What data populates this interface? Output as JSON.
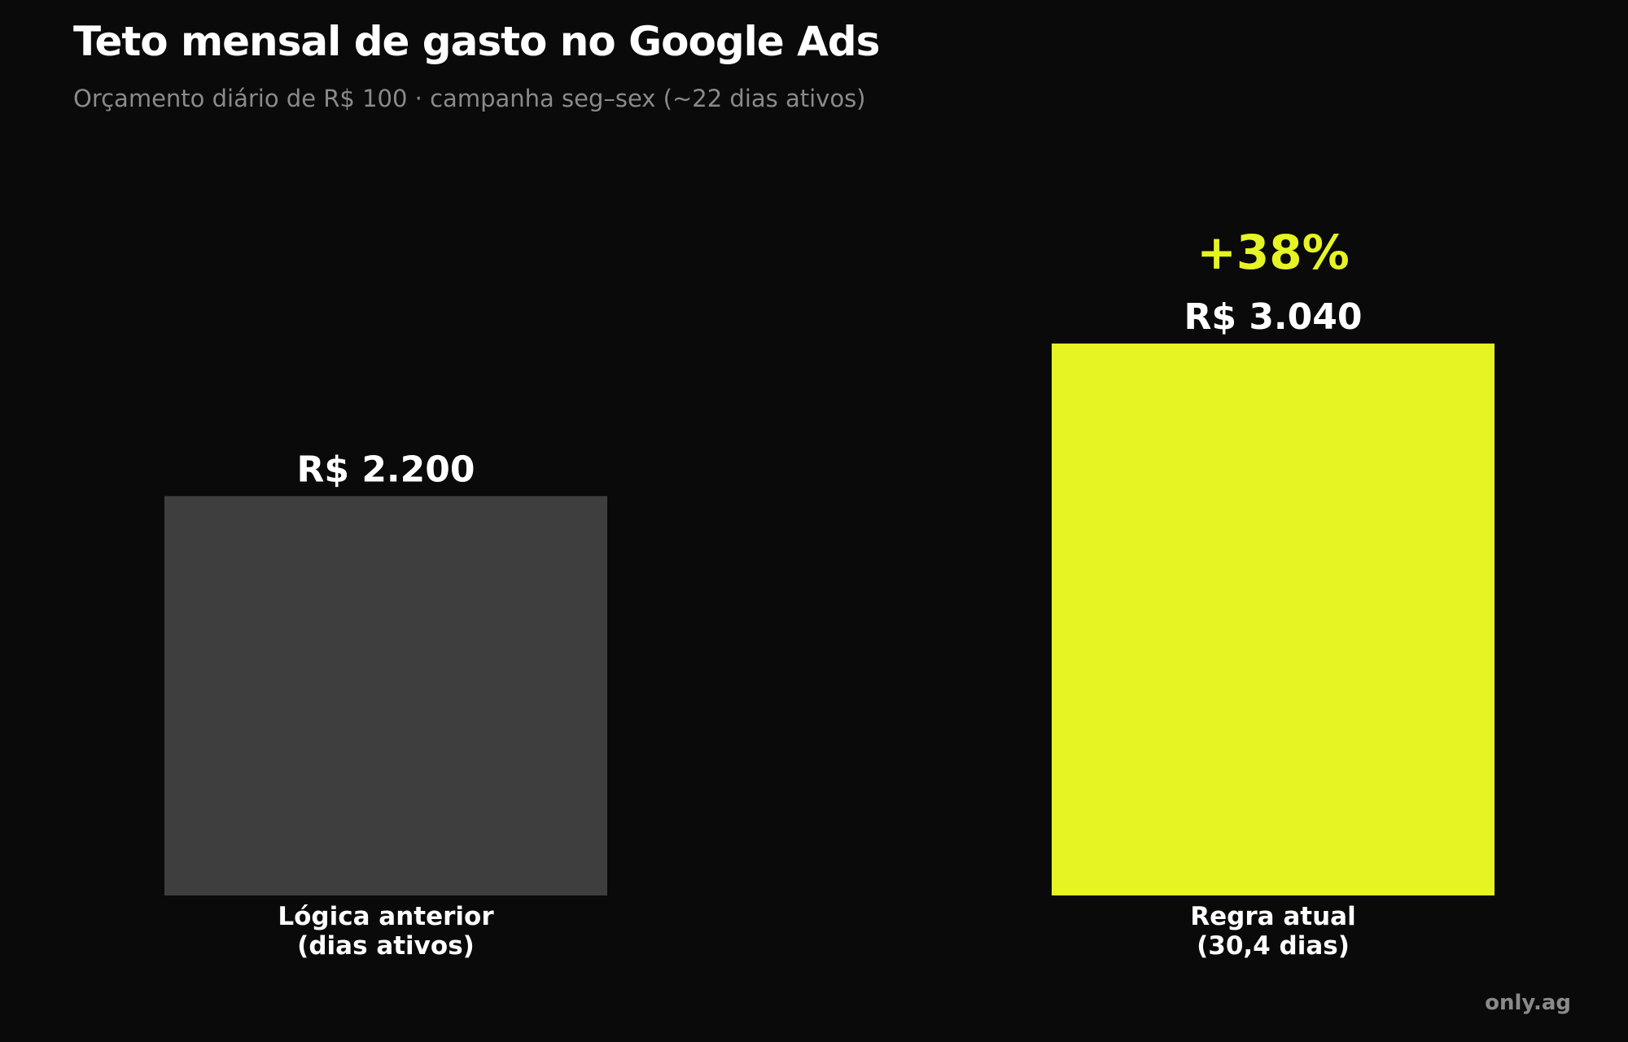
{
  "brand": "only.ag",
  "chart_data": {
    "type": "bar",
    "title": "Teto mensal de gasto no Google Ads",
    "subtitle": "Orçamento diário de R$ 100 · campanha seg–sex (~22 dias ativos)",
    "categories": [
      [
        "Lógica anterior",
        "(dias ativos)"
      ],
      [
        "Regra atual",
        "(30,4 dias)"
      ]
    ],
    "values": [
      2200,
      3040
    ],
    "value_labels": [
      "R$ 2.200",
      "R$ 3.040"
    ],
    "annotation": "+38%",
    "annotation_category_index": 1,
    "colors": [
      "#3e3e3e",
      "#e6f423"
    ],
    "annotation_color": "#e6f423",
    "ylim": [
      0,
      3040
    ],
    "grid": false,
    "legend": "none"
  }
}
